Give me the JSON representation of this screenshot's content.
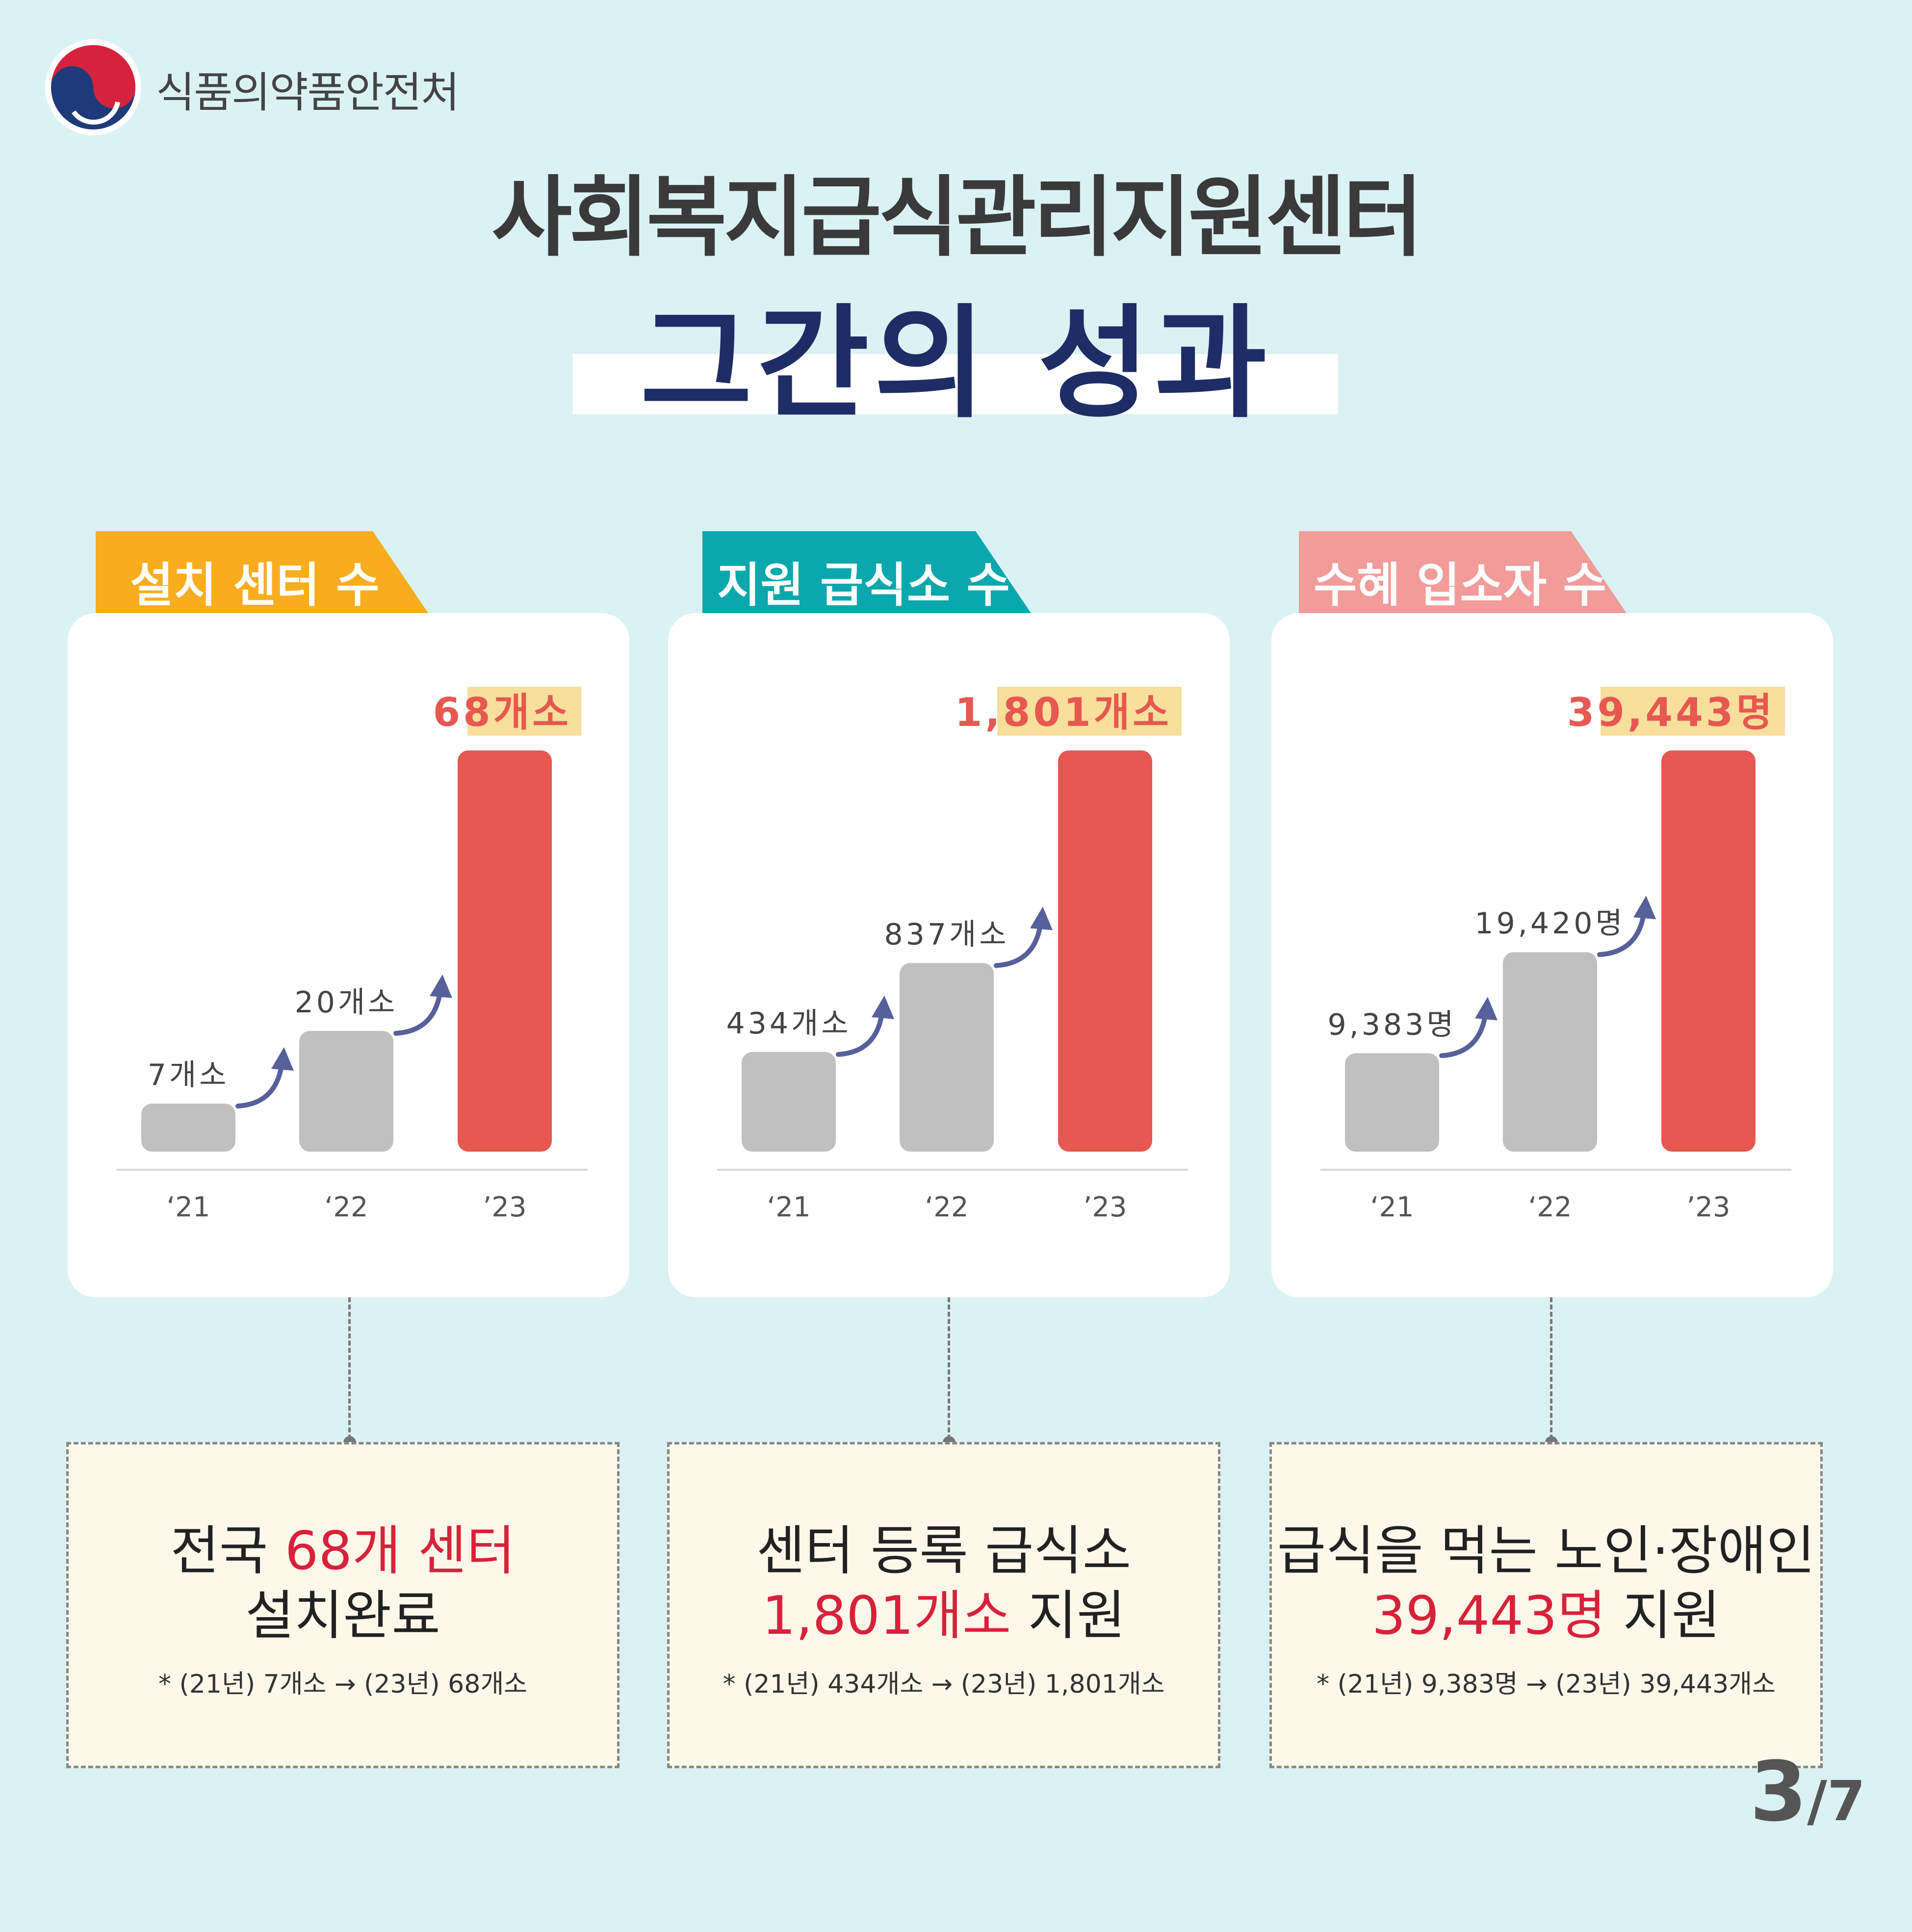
{
  "header": {
    "agency": "식품의약품안전처",
    "title": "사회복지급식관리지원센터",
    "subtitle": "그간의 성과",
    "logo_icon": "taegeuk-logo-icon"
  },
  "colors": {
    "bar_past": "#c0c0c0",
    "bar_current": "#e65850",
    "value_highlight": "#f8df9c",
    "tab1": "#f7ad1e",
    "tab2": "#0aa8ac",
    "tab3": "#f19c9a",
    "arrow": "#57609a"
  },
  "chart_data": [
    {
      "type": "bar",
      "title": "설치 센터 수",
      "categories": [
        "‘21",
        "‘22",
        "’23"
      ],
      "values": [
        7,
        20,
        68
      ],
      "labels": [
        "7개소",
        "20개소",
        "68개소"
      ]
    },
    {
      "type": "bar",
      "title": "지원 급식소 수",
      "categories": [
        "‘21",
        "‘22",
        "’23"
      ],
      "values": [
        434,
        837,
        1801
      ],
      "labels": [
        "434개소",
        "837개소",
        "1,801개소"
      ]
    },
    {
      "type": "bar",
      "title": "수혜 입소자 수",
      "categories": [
        "‘21",
        "‘22",
        "’23"
      ],
      "values": [
        9383,
        19420,
        39443
      ],
      "labels": [
        "9,383명",
        "19,420명",
        "39,443명"
      ]
    }
  ],
  "summaries": [
    {
      "line1_a": "전국 ",
      "line1_red": "68개 센터",
      "line2_a": "설치완료",
      "line2_red": "",
      "line2_b": "",
      "note": "* (21년) 7개소 → (23년) 68개소"
    },
    {
      "line1_a": "센터 등록 급식소",
      "line1_red": "",
      "line2_a": "",
      "line2_red": "1,801개소",
      "line2_b": " 지원",
      "note": "* (21년) 434개소 → (23년) 1,801개소"
    },
    {
      "line1_a": "급식을 먹는 노인·장애인",
      "line1_red": "",
      "line2_a": "",
      "line2_red": "39,443명",
      "line2_b": " 지원",
      "note": "* (21년) 9,383명 → (23년) 39,443개소"
    }
  ],
  "pagination": {
    "current": "3",
    "total": "/7"
  }
}
